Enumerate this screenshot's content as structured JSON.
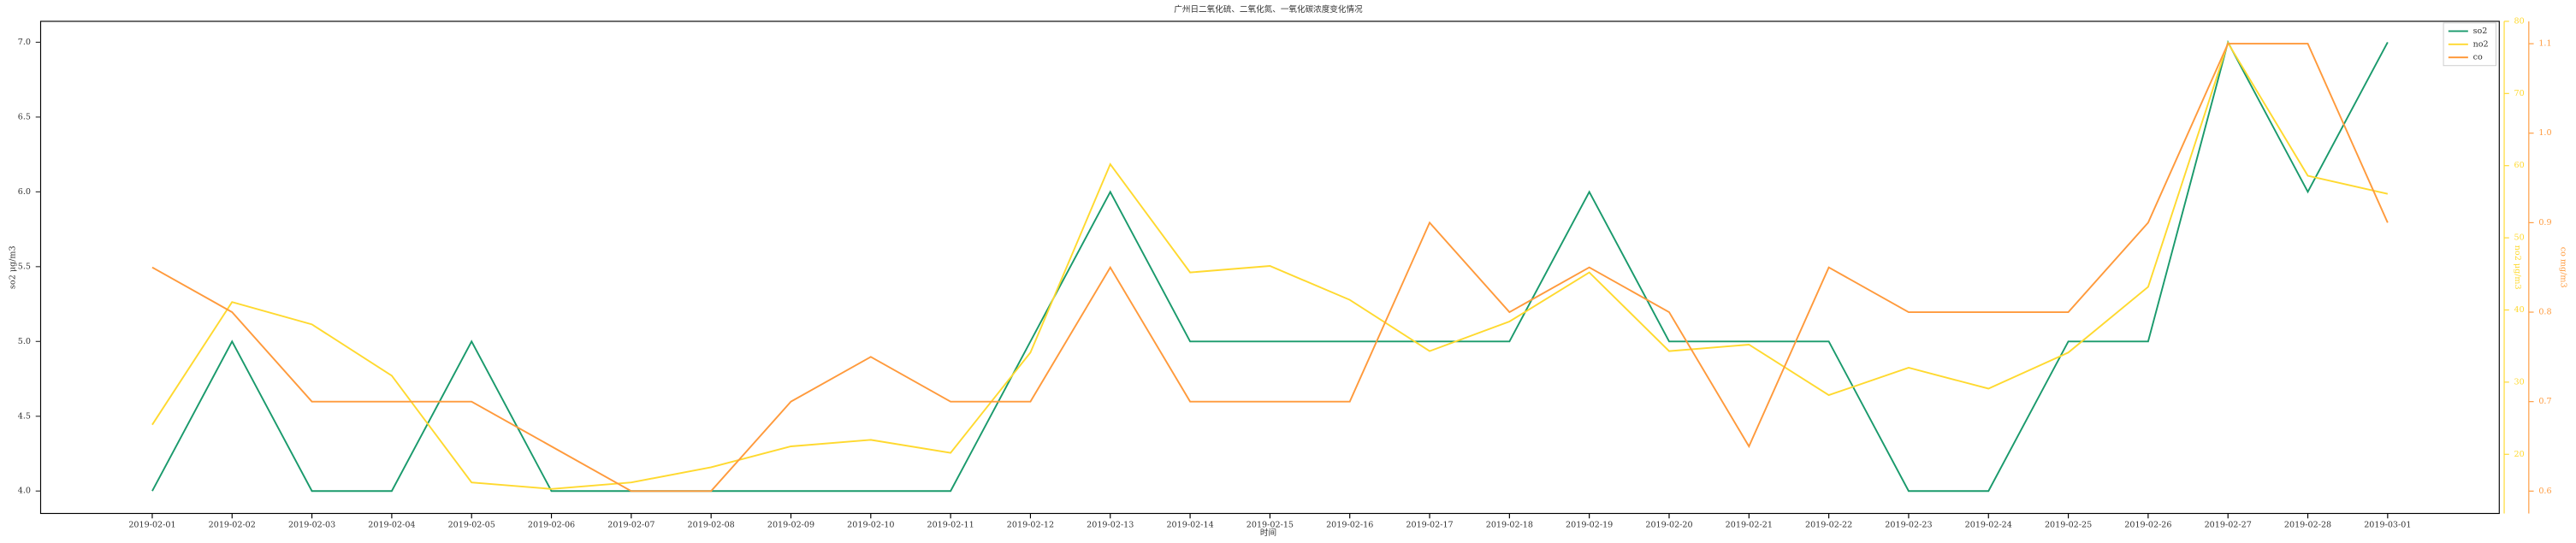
{
  "chart_data": {
    "type": "line",
    "title": "广州日二氧化硫、二氧化氮、一氧化碳浓度变化情况",
    "x_label": "时间",
    "y_label": "so2 μg/m3",
    "y2_label": "no2 μg/m3",
    "y3_label": "co mg/m3",
    "categories": [
      "2019-02-01",
      "2019-02-02",
      "2019-02-03",
      "2019-02-04",
      "2019-02-05",
      "2019-02-06",
      "2019-02-07",
      "2019-02-08",
      "2019-02-09",
      "2019-02-10",
      "2019-02-11",
      "2019-02-12",
      "2019-02-13",
      "2019-02-14",
      "2019-02-15",
      "2019-02-16",
      "2019-02-17",
      "2019-02-18",
      "2019-02-19",
      "2019-02-20",
      "2019-02-21",
      "2019-02-22",
      "2019-02-23",
      "2019-02-24",
      "2019-02-25",
      "2019-02-26",
      "2019-02-27",
      "2019-02-28",
      "2019-03-01"
    ],
    "series": [
      {
        "name": "so2",
        "color": "#1a9a6c",
        "values": [
          4,
          5,
          4,
          4,
          5,
          4,
          4,
          4,
          4,
          4,
          4,
          5,
          6,
          5,
          5,
          5,
          5,
          5,
          6,
          5,
          5,
          5,
          4,
          4,
          5,
          5,
          7,
          6,
          7
        ]
      },
      {
        "name": "no2",
        "color": "#ffd92f",
        "axis": "y2",
        "values": [
          24.1,
          41.1,
          38,
          30.9,
          16.1,
          15.2,
          16.1,
          18.2,
          21.1,
          22,
          20.2,
          34.1,
          60.2,
          45.2,
          46.1,
          41.4,
          34.3,
          38.4,
          45.2,
          34.3,
          35.2,
          28.2,
          32,
          29.1,
          34.1,
          43.2,
          77,
          58.6,
          56.1
        ]
      },
      {
        "name": "co",
        "color": "#ff9a3c",
        "axis": "y3",
        "values": [
          0.85,
          0.8,
          0.7,
          0.7,
          0.7,
          0.65,
          0.6,
          0.6,
          0.7,
          0.75,
          0.7,
          0.7,
          0.85,
          0.7,
          0.7,
          0.7,
          0.9,
          0.8,
          0.85,
          0.8,
          0.65,
          0.85,
          0.8,
          0.8,
          0.8,
          0.9,
          1.1,
          1.1,
          0.9
        ]
      }
    ],
    "ylim": [
      3.85,
      7.14
    ],
    "yticks": [
      {
        "value": 4,
        "label": "4.0"
      },
      4.5,
      {
        "value": 5,
        "label": "5.0"
      },
      5.5,
      {
        "value": 6,
        "label": "6.0"
      },
      6.5,
      {
        "value": 7,
        "label": "7.0"
      }
    ],
    "y2lim": [
      11.8,
      80
    ],
    "y2ticks": [
      20,
      30,
      40,
      50,
      60,
      70,
      80
    ],
    "y3lim": [
      0.575,
      1.125
    ],
    "y3ticks": [
      0.6,
      0.7,
      0.8,
      0.9,
      {
        "value": 1,
        "label": "1.0"
      },
      1.1
    ],
    "legend": "upper right"
  }
}
